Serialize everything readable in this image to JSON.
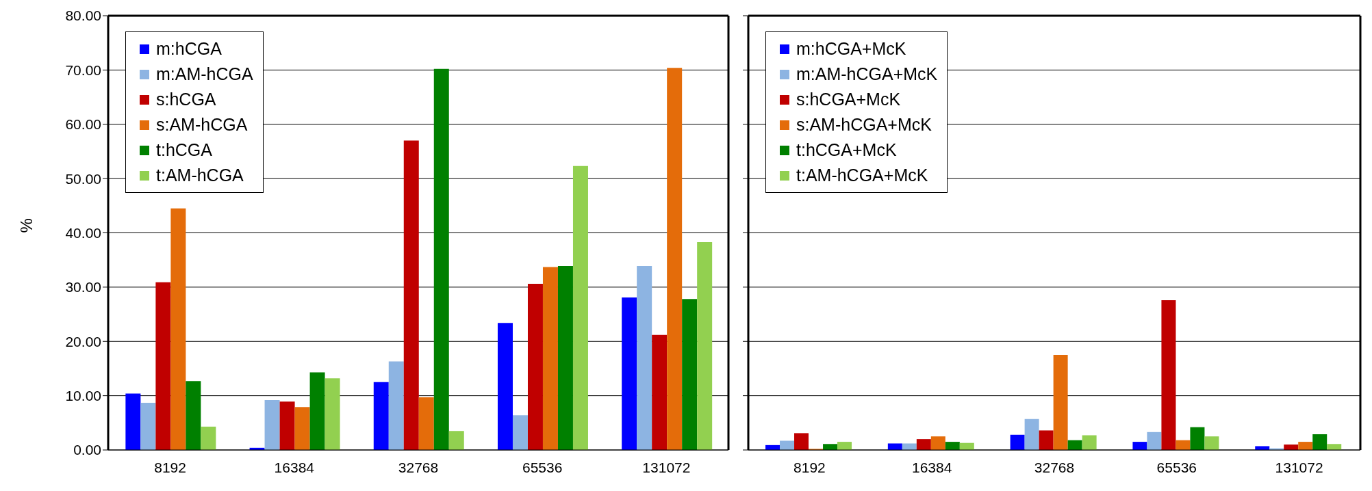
{
  "chart_data": [
    {
      "type": "bar",
      "ylabel": "%",
      "categories": [
        "8192",
        "16384",
        "32768",
        "65536",
        "131072"
      ],
      "ylim": [
        0,
        80
      ],
      "yticks": [
        {
          "value": 0,
          "label": "0.00"
        },
        {
          "value": 10,
          "label": "10.00"
        },
        {
          "value": 20,
          "label": "20.00"
        },
        {
          "value": 30,
          "label": "30.00"
        },
        {
          "value": 40,
          "label": "40.00"
        },
        {
          "value": 50,
          "label": "50.00"
        },
        {
          "value": 60,
          "label": "60.00"
        },
        {
          "value": 70,
          "label": "70.00"
        },
        {
          "value": 80,
          "label": "80.00"
        }
      ],
      "grid": "y",
      "legend": "top left",
      "series": [
        {
          "name": "m:hCGA",
          "color": "#0000ff",
          "values": [
            10.4,
            0.4,
            12.5,
            23.4,
            28.1
          ]
        },
        {
          "name": "m:AM-hCGA",
          "color": "#8db4e2",
          "values": [
            8.7,
            9.2,
            16.3,
            6.4,
            33.9
          ]
        },
        {
          "name": "s:hCGA",
          "color": "#c00000",
          "values": [
            30.9,
            8.9,
            57.0,
            30.6,
            21.2
          ]
        },
        {
          "name": "s:AM-hCGA",
          "color": "#e46c0a",
          "values": [
            44.5,
            7.9,
            9.7,
            33.7,
            70.4
          ]
        },
        {
          "name": "t:hCGA",
          "color": "#008000",
          "values": [
            12.7,
            14.3,
            70.2,
            33.9,
            27.8
          ]
        },
        {
          "name": "t:AM-hCGA",
          "color": "#92d050",
          "values": [
            4.3,
            13.2,
            3.5,
            52.3,
            38.3
          ]
        }
      ]
    },
    {
      "type": "bar",
      "categories": [
        "8192",
        "16384",
        "32768",
        "65536",
        "131072"
      ],
      "ylim": [
        0,
        80
      ],
      "yticks": [
        {
          "value": 0,
          "label": null
        },
        {
          "value": 10,
          "label": null
        },
        {
          "value": 20,
          "label": null
        },
        {
          "value": 30,
          "label": null
        },
        {
          "value": 40,
          "label": null
        },
        {
          "value": 50,
          "label": null
        },
        {
          "value": 60,
          "label": null
        },
        {
          "value": 70,
          "label": null
        },
        {
          "value": 80,
          "label": null
        }
      ],
      "grid": "y",
      "legend": "top left",
      "tick_labels": "x",
      "series": [
        {
          "name": "m:hCGA+McK",
          "color": "#0000ff",
          "values": [
            0.9,
            1.2,
            2.8,
            1.5,
            0.7
          ]
        },
        {
          "name": "m:AM-hCGA+McK",
          "color": "#8db4e2",
          "values": [
            1.7,
            1.2,
            5.7,
            3.3,
            0.3
          ]
        },
        {
          "name": "s:hCGA+McK",
          "color": "#c00000",
          "values": [
            3.1,
            2.0,
            3.6,
            27.6,
            1.0
          ]
        },
        {
          "name": "s:AM-hCGA+McK",
          "color": "#e46c0a",
          "values": [
            0.2,
            2.5,
            17.5,
            1.8,
            1.5
          ]
        },
        {
          "name": "t:hCGA+McK",
          "color": "#008000",
          "values": [
            1.1,
            1.5,
            1.8,
            4.2,
            2.9
          ]
        },
        {
          "name": "t:AM-hCGA+McK",
          "color": "#92d050",
          "values": [
            1.5,
            1.3,
            2.7,
            2.5,
            1.1
          ]
        }
      ]
    }
  ]
}
